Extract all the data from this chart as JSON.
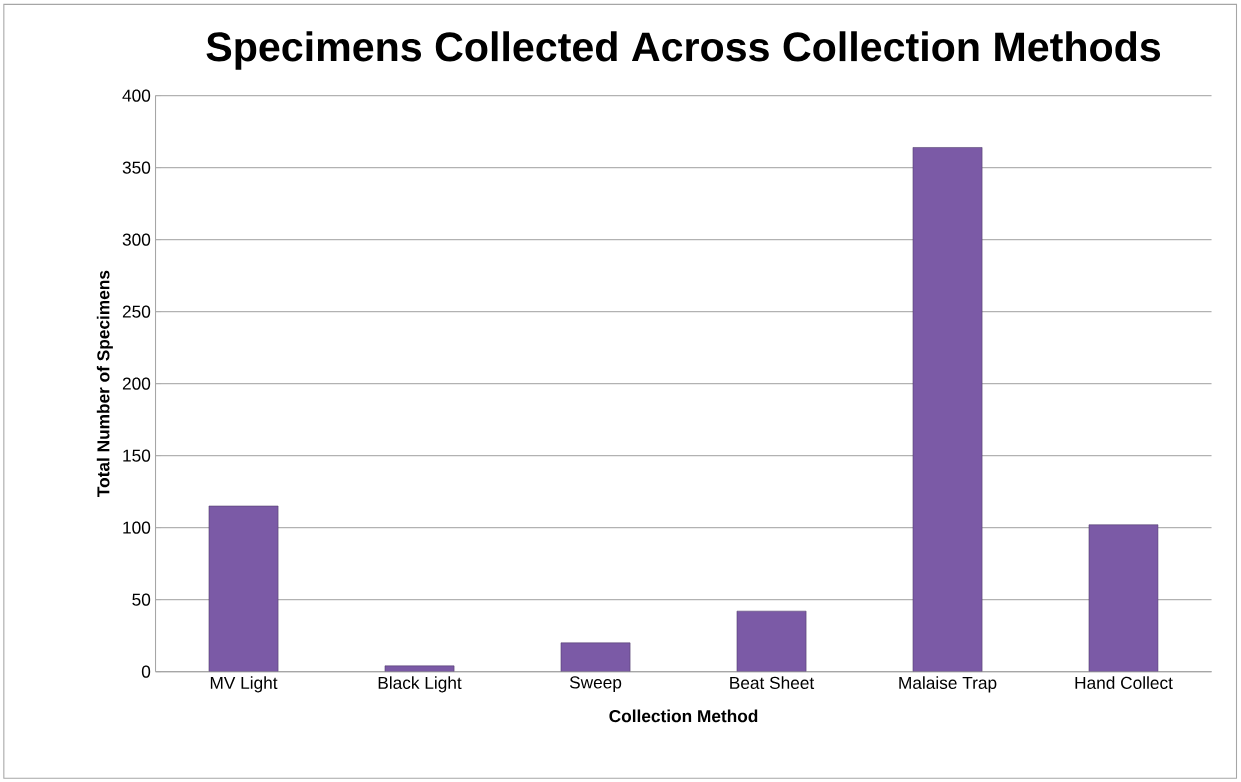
{
  "chart_data": {
    "type": "bar",
    "title": "Specimens Collected Across Collection Methods",
    "xlabel": "Collection Method",
    "ylabel": "Total Number of Specimens",
    "categories": [
      "MV Light",
      "Black Light",
      "Sweep",
      "Beat Sheet",
      "Malaise Trap",
      "Hand Collect"
    ],
    "values": [
      115,
      4,
      20,
      42,
      364,
      102
    ],
    "color": "#7b5aa6",
    "ylim": [
      0,
      400
    ],
    "yticks": [
      0,
      50,
      100,
      150,
      200,
      250,
      300,
      350,
      400
    ],
    "grid": "y"
  }
}
